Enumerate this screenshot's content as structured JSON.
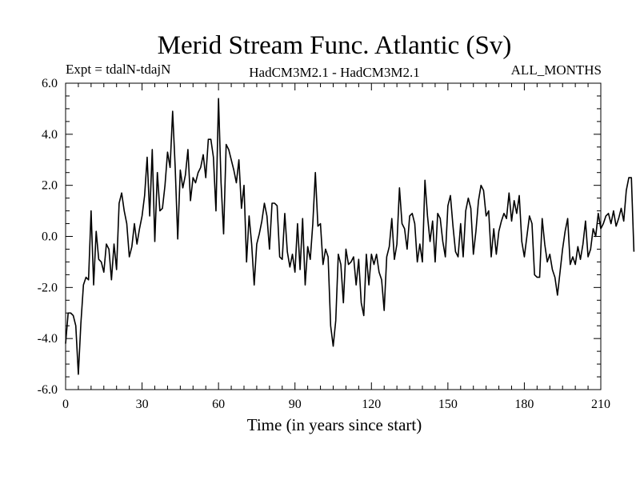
{
  "chart_data": {
    "type": "line",
    "title": "Merid Stream Func. Atlantic (Sv)",
    "subtitle_left": "Expt = tdalN-tdajN",
    "subtitle_center": "HadCM3M2.1 - HadCM3M2.1",
    "subtitle_right": "ALL_MONTHS",
    "xlabel": "Time (in years since start)",
    "ylabel": "",
    "xlim": [
      0,
      210
    ],
    "ylim": [
      -6.0,
      6.0
    ],
    "xticks": [
      0,
      30,
      60,
      90,
      120,
      150,
      180,
      210
    ],
    "xtick_labels": [
      "0",
      "30",
      "60",
      "90",
      "120",
      "150",
      "180",
      "210"
    ],
    "yticks": [
      -6.0,
      -4.0,
      -2.0,
      0.0,
      2.0,
      4.0,
      6.0
    ],
    "ytick_labels": [
      "-6.0",
      "-4.0",
      "-2.0",
      "0.0",
      "2.0",
      "4.0",
      "6.0"
    ],
    "grid": false,
    "series": [
      {
        "name": "Merid Stream Func. Atlantic",
        "color": "#000000",
        "x_start": 0,
        "x_step": 1,
        "values": [
          -4.2,
          -3.0,
          -3.0,
          -3.1,
          -3.5,
          -5.4,
          -3.4,
          -1.9,
          -1.6,
          -1.7,
          1.0,
          -1.9,
          0.2,
          -0.9,
          -1.0,
          -1.4,
          -0.3,
          -0.5,
          -1.7,
          -0.3,
          -1.3,
          1.3,
          1.7,
          1.0,
          0.5,
          -0.8,
          -0.4,
          0.5,
          -0.3,
          0.3,
          0.8,
          1.6,
          3.1,
          0.8,
          3.4,
          -0.2,
          2.5,
          1.0,
          1.1,
          2.0,
          3.3,
          2.7,
          4.9,
          2.7,
          -0.1,
          2.6,
          1.9,
          2.4,
          3.4,
          1.4,
          2.3,
          2.1,
          2.5,
          2.7,
          3.2,
          2.3,
          3.8,
          3.8,
          3.1,
          1.0,
          5.4,
          2.1,
          0.1,
          3.6,
          3.4,
          3.0,
          2.6,
          2.1,
          3.0,
          1.1,
          2.0,
          -1.0,
          0.8,
          -0.3,
          -1.9,
          -0.3,
          0.1,
          0.6,
          1.3,
          0.8,
          -0.5,
          1.3,
          1.3,
          1.2,
          -0.8,
          -0.9,
          0.9,
          -0.6,
          -1.2,
          -0.7,
          -1.4,
          0.5,
          -1.3,
          0.7,
          -1.9,
          -0.4,
          -0.9,
          0.5,
          2.5,
          0.4,
          0.5,
          -1.1,
          -0.5,
          -0.8,
          -3.5,
          -4.3,
          -3.3,
          -0.7,
          -1.1,
          -2.6,
          -0.5,
          -1.1,
          -1.0,
          -0.8,
          -1.9,
          -0.9,
          -2.6,
          -3.1,
          -0.7,
          -1.9,
          -0.7,
          -1.1,
          -0.7,
          -1.4,
          -1.7,
          -2.9,
          -0.8,
          -0.4,
          0.7,
          -0.9,
          -0.3,
          1.9,
          0.5,
          0.3,
          -0.5,
          0.8,
          0.9,
          0.5,
          -1.0,
          -0.3,
          -1.0,
          2.2,
          0.8,
          -0.2,
          0.6,
          -1.0,
          0.9,
          0.7,
          -0.2,
          -0.8,
          1.2,
          1.6,
          0.4,
          -0.6,
          -0.8,
          0.5,
          -0.8,
          1.0,
          1.5,
          1.1,
          -0.7,
          0.2,
          1.4,
          2.0,
          1.8,
          0.8,
          1.0,
          -0.8,
          0.3,
          -0.7,
          0.2,
          0.6,
          0.9,
          0.7,
          1.7,
          0.6,
          1.4,
          0.9,
          1.6,
          -0.2,
          -0.8,
          0.0,
          0.8,
          0.5,
          -1.5,
          -1.6,
          -1.6,
          0.7,
          -0.3,
          -1.0,
          -0.7,
          -1.3,
          -1.6,
          -2.3,
          -1.4,
          -0.5,
          0.2,
          0.7,
          -1.1,
          -0.8,
          -1.1,
          -0.4,
          -0.9,
          -0.3,
          0.6,
          -0.8,
          -0.5,
          0.3,
          0.0,
          0.9,
          0.3,
          0.5,
          0.8,
          0.9,
          0.5,
          1.0,
          0.4,
          0.7,
          1.1,
          0.6,
          1.8,
          2.3,
          2.3,
          -0.6
        ]
      }
    ]
  }
}
